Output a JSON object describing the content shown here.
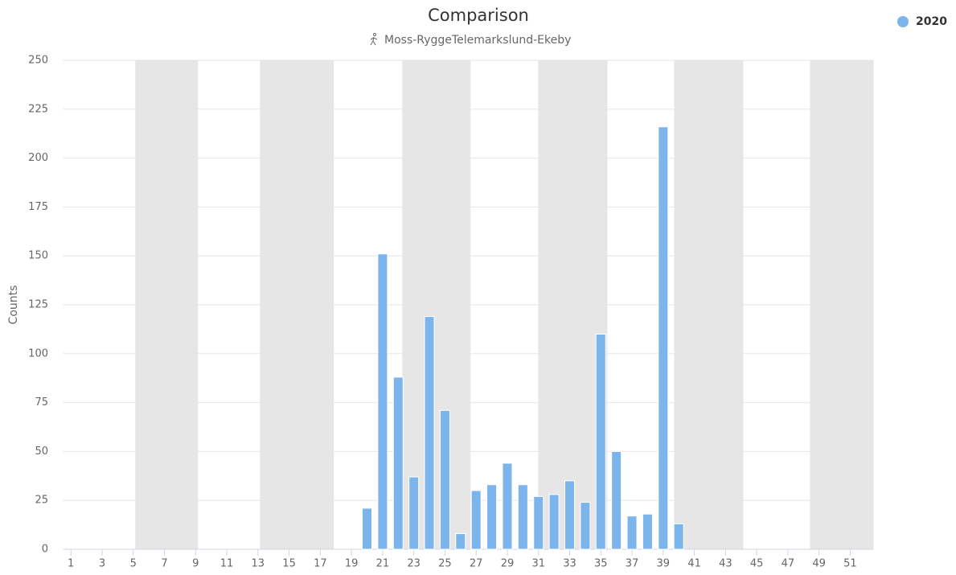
{
  "chart_data": {
    "type": "bar",
    "title": "Comparison",
    "subtitle": "Moss-RyggeTelemarkslund-Ekeby",
    "y_label": "Counts",
    "categories": [
      "1",
      null,
      "3",
      null,
      "5",
      null,
      "7",
      null,
      "9",
      null,
      "11",
      null,
      "13",
      null,
      "15",
      null,
      "17",
      null,
      "19",
      null,
      "21",
      null,
      "23",
      null,
      "25",
      null,
      "27",
      null,
      "29",
      null,
      "31",
      null,
      "33",
      null,
      "35",
      null,
      "37",
      null,
      "39",
      null,
      "41",
      null,
      "43",
      null,
      "45",
      null,
      "47",
      null,
      "49",
      null,
      "51",
      null
    ],
    "series": [
      {
        "name": "2020",
        "color": "#7cb5ec",
        "values": [
          0,
          0,
          0,
          0,
          0,
          0,
          0,
          0,
          0,
          0,
          0,
          0,
          0,
          0,
          0,
          0,
          0,
          0,
          0,
          21,
          151,
          88,
          37,
          119,
          71,
          8,
          30,
          33,
          44,
          33,
          27,
          28,
          35,
          24,
          110,
          50,
          17,
          18,
          216,
          13,
          0,
          0,
          0,
          0,
          0,
          0,
          0,
          0,
          0,
          0,
          0,
          0
        ]
      }
    ],
    "ylim": [
      0,
      250
    ],
    "yticks": [
      0,
      25,
      50,
      75,
      100,
      125,
      150,
      175,
      200,
      225,
      250
    ],
    "grid": true,
    "bands": [
      [
        5.13,
        9.15
      ],
      [
        13.13,
        17.87
      ],
      [
        22.26,
        26.64
      ],
      [
        30.98,
        35.42
      ],
      [
        39.7,
        44.14
      ],
      [
        48.42,
        52.55
      ]
    ],
    "band_color": "#e6e6e6",
    "legend": "top-right"
  }
}
